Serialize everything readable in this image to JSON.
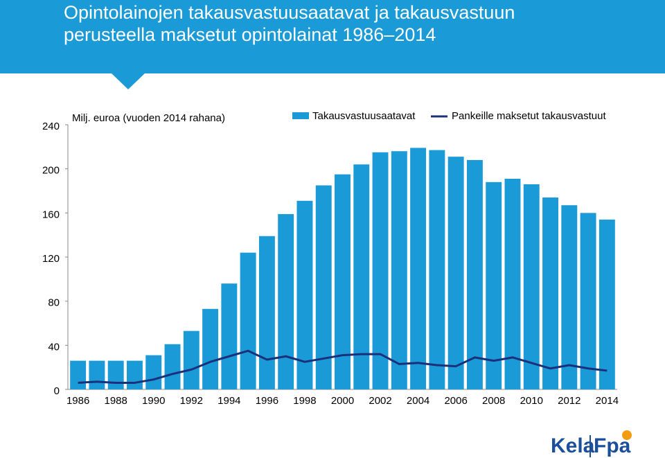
{
  "chart_data": {
    "type": "bar-line",
    "title": "Opintolainojen takausvastuusaatavat ja takausvastuun perusteella maksetut opintolainat 1986–2014",
    "y_label": "Milj. euroa (vuoden 2014 rahana)",
    "categories": [
      "1986",
      null,
      "1988",
      null,
      "1990",
      null,
      "1992",
      null,
      "1994",
      null,
      "1996",
      null,
      "1998",
      null,
      "2000",
      null,
      "2002",
      null,
      "2004",
      null,
      "2006",
      null,
      "2008",
      null,
      "2010",
      null,
      "2012",
      null,
      "2014"
    ],
    "series": [
      {
        "name": "Takausvastuusaatavat",
        "color": "#1a9ad6",
        "kind": "bar",
        "values": [
          26,
          26,
          26,
          26,
          31,
          41,
          53,
          73,
          96,
          124,
          139,
          159,
          171,
          185,
          195,
          204,
          215,
          216,
          219,
          217,
          211,
          208,
          188,
          191,
          186,
          174,
          167,
          160,
          154
        ]
      },
      {
        "name": "Pankeille maksetut takausvastuut",
        "color": "#1b2f7a",
        "kind": "line",
        "values": [
          6,
          7,
          6,
          6,
          9,
          14,
          18,
          25,
          30,
          35,
          27,
          30,
          25,
          28,
          31,
          32,
          32,
          23,
          24,
          22,
          21,
          29,
          26,
          29,
          24,
          19,
          22,
          19,
          17
        ]
      }
    ],
    "ylim": [
      0,
      240
    ],
    "yticks": [
      0,
      40,
      80,
      120,
      160,
      200,
      240
    ]
  },
  "logo": {
    "left": "Kela",
    "right": "Fpa"
  }
}
